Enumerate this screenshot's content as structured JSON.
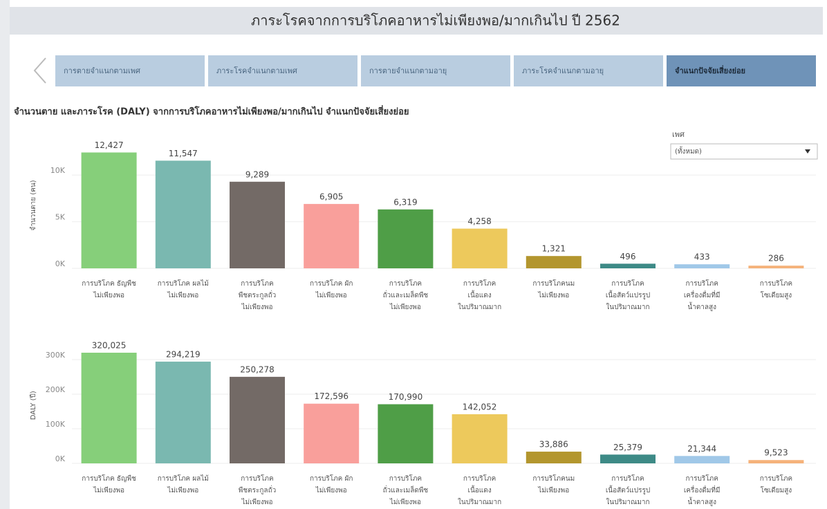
{
  "header": {
    "title": "ภาระโรคจากการบริโภคอาหารไม่เพียงพอ/มากเกินไป ปี 2562"
  },
  "tabs": [
    "การตายจำแนกตามเพศ",
    "ภาระโรคจำแนกตามเพศ",
    "การตายจำแนกตามอายุ",
    "ภาระโรคจำแนกตามอายุ",
    "จำแนกปัจจัยเสี่ยงย่อย"
  ],
  "subtitle": "จำนวนตาย และภาระโรค (DALY) จากการบริโภคอาหารไม่เพียงพอ/มากเกินไป จำแนกปัจจัยเสี่ยงย่อย",
  "filter": {
    "label": "เพศ",
    "value": "(ทั้งหมด)"
  },
  "chart_data": [
    {
      "type": "bar",
      "ylabel": "จำนวนตาย (คน)",
      "categories": [
        [
          "การบริโภค ธัญพืช",
          "ไม่เพียงพอ"
        ],
        [
          "การบริโภค ผลไม้",
          "ไม่เพียงพอ"
        ],
        [
          "การบริโภค",
          "พืชตระกูลถั่ว",
          "ไม่เพียงพอ"
        ],
        [
          "การบริโภค ผัก",
          "ไม่เพียงพอ"
        ],
        [
          "การบริโภค",
          "ถั่วและเมล็ดพืช",
          "ไม่เพียงพอ"
        ],
        [
          "การบริโภค",
          "เนื้อแดง",
          "ในปริมาณมาก"
        ],
        [
          "การบริโภคนม",
          "ไม่เพียงพอ"
        ],
        [
          "การบริโภค",
          "เนื้อสัตว์แปรรูป",
          "ในปริมาณมาก"
        ],
        [
          "การบริโภค",
          "เครื่องดื่มที่มี",
          "น้ำตาลสูง"
        ],
        [
          "การบริโภค",
          "โซเดียมสูง"
        ]
      ],
      "values": [
        12427,
        11547,
        9289,
        6905,
        6319,
        4258,
        1321,
        496,
        433,
        286
      ],
      "value_labels": [
        "12,427",
        "11,547",
        "9,289",
        "6,905",
        "6,319",
        "4,258",
        "1,321",
        "496",
        "433",
        "286"
      ],
      "colors": [
        "#86cf7a",
        "#7ab8b0",
        "#736a66",
        "#f99f9b",
        "#4f9e47",
        "#edc95c",
        "#b3962e",
        "#3d8a86",
        "#a0c8e8",
        "#f5b27a"
      ],
      "ylim": [
        0,
        13500
      ],
      "yticks": [
        {
          "value": 0,
          "label": "0K"
        },
        {
          "value": 5000,
          "label": "5K"
        },
        {
          "value": 10000,
          "label": "10K"
        }
      ],
      "grid": true
    },
    {
      "type": "bar",
      "ylabel": "DALY (ปี)",
      "categories": [
        [
          "การบริโภค ธัญพืช",
          "ไม่เพียงพอ"
        ],
        [
          "การบริโภค ผลไม้",
          "ไม่เพียงพอ"
        ],
        [
          "การบริโภค",
          "พืชตระกูลถั่ว",
          "ไม่เพียงพอ"
        ],
        [
          "การบริโภค ผัก",
          "ไม่เพียงพอ"
        ],
        [
          "การบริโภค",
          "ถั่วและเมล็ดพืช",
          "ไม่เพียงพอ"
        ],
        [
          "การบริโภค",
          "เนื้อแดง",
          "ในปริมาณมาก"
        ],
        [
          "การบริโภคนม",
          "ไม่เพียงพอ"
        ],
        [
          "การบริโภค",
          "เนื้อสัตว์แปรรูป",
          "ในปริมาณมาก"
        ],
        [
          "การบริโภค",
          "เครื่องดื่มที่มี",
          "น้ำตาลสูง"
        ],
        [
          "การบริโภค",
          "โซเดียมสูง"
        ]
      ],
      "values": [
        320025,
        294219,
        250278,
        172596,
        170990,
        142052,
        33886,
        25379,
        21344,
        9523
      ],
      "value_labels": [
        "320,025",
        "294,219",
        "250,278",
        "172,596",
        "170,990",
        "142,052",
        "33,886",
        "25,379",
        "21,344",
        "9,523"
      ],
      "colors": [
        "#86cf7a",
        "#7ab8b0",
        "#736a66",
        "#f99f9b",
        "#4f9e47",
        "#edc95c",
        "#b3962e",
        "#3d8a86",
        "#a0c8e8",
        "#f5b27a"
      ],
      "ylim": [
        0,
        335000
      ],
      "yticks": [
        {
          "value": 0,
          "label": "0K"
        },
        {
          "value": 100000,
          "label": "100K"
        },
        {
          "value": 200000,
          "label": "200K"
        },
        {
          "value": 300000,
          "label": "300K"
        }
      ],
      "grid": true
    }
  ]
}
